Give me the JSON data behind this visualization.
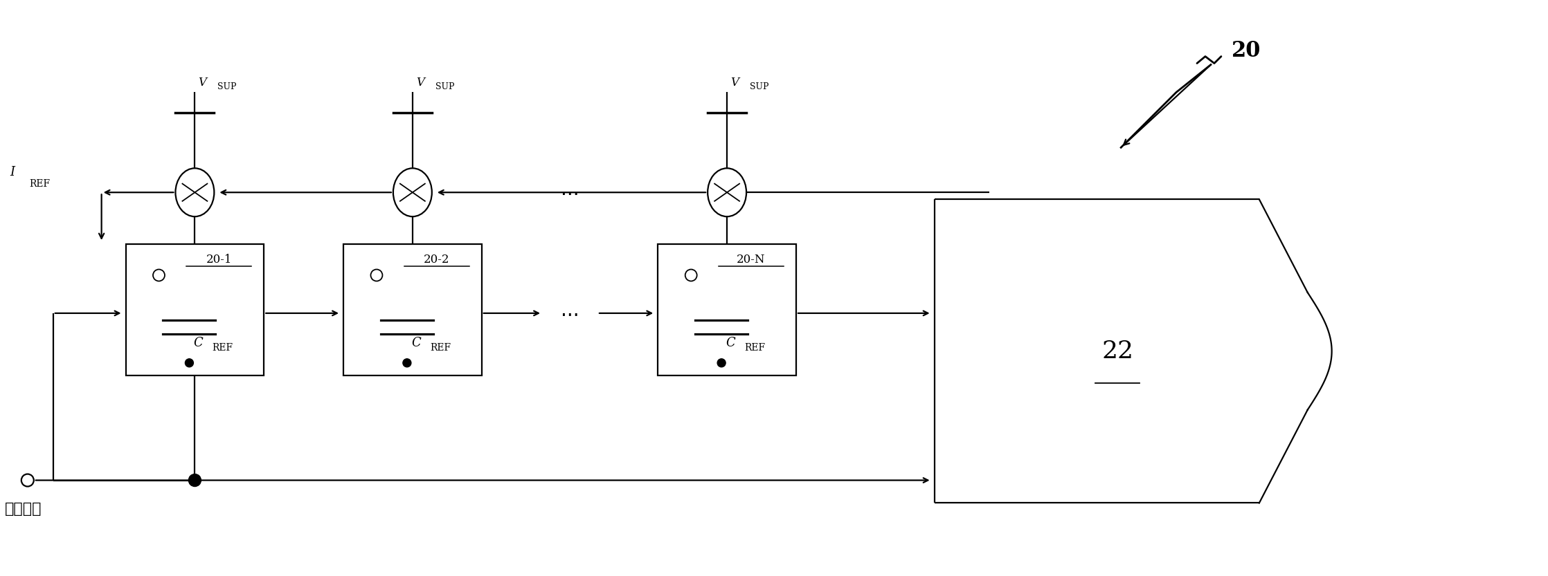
{
  "bg_color": "#ffffff",
  "line_color": "#000000",
  "fig_width": 22.36,
  "fig_height": 8.33,
  "label_20": "20",
  "label_22": "22",
  "label_iref_main": "I",
  "label_iref_sub": "REF",
  "label_vsup_main": "V",
  "label_vsup_sub": "SUP",
  "label_cref_main": "C",
  "label_cref_sub": "REF",
  "label_clock": "时钟输入",
  "block_labels": [
    "20-1",
    "20-2",
    "20-N"
  ],
  "dots_label": "..."
}
